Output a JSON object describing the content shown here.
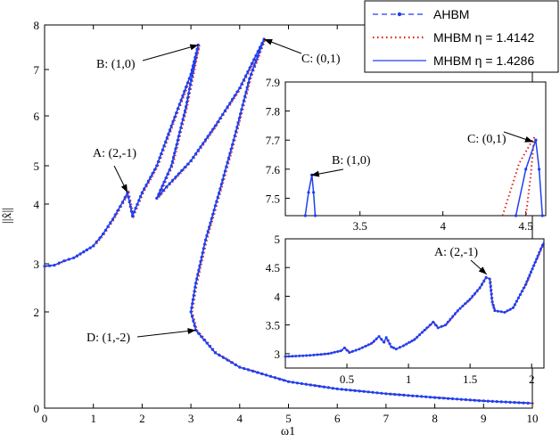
{
  "chart_data": {
    "type": "line",
    "xlabel": "ω1",
    "ylabel": "||x̂||",
    "xlim": [
      0,
      10
    ],
    "ylim": [
      0,
      8
    ],
    "xticks": [
      "0",
      "1",
      "2",
      "3",
      "4",
      "5",
      "6",
      "7",
      "8",
      "9",
      "10"
    ],
    "yticks": [
      "0",
      "2",
      "3",
      "4",
      "5",
      "6",
      "7",
      "8"
    ],
    "legend": {
      "position": "top-right",
      "entries": [
        "AHBM",
        "MHBM  η = 1.4142",
        "MHBM  η = 1.4286"
      ]
    },
    "colors": {
      "ahbm": "#1f3ff0",
      "mhbm1": "#e0201a",
      "mhbm2": "#1f3ff0"
    },
    "annotations": [
      {
        "text": "B: (1,0)",
        "x": 3.15,
        "y": 7.55
      },
      {
        "text": "C: (0,1)",
        "x": 4.5,
        "y": 7.68
      },
      {
        "text": "A: (2,-1)",
        "x": 1.7,
        "y": 4.3
      },
      {
        "text": "D: (1,-2)",
        "x": 3.1,
        "y": 1.62
      }
    ],
    "series": [
      {
        "name": "AHBM",
        "x": [
          0,
          0.2,
          0.4,
          0.6,
          0.8,
          1.0,
          1.2,
          1.4,
          1.6,
          1.7,
          1.8,
          2.0,
          2.3,
          2.6,
          3.0,
          3.15,
          2.9,
          2.6,
          2.3,
          2.5,
          3.0,
          3.5,
          4.0,
          4.5,
          4.2,
          3.9,
          3.6,
          3.3,
          3.1,
          3.0,
          3.1,
          3.5,
          4.0,
          5.0,
          6.0,
          7.0,
          8.0,
          9.0,
          10.0
        ],
        "y": [
          2.95,
          2.97,
          3.05,
          3.1,
          3.2,
          3.3,
          3.5,
          3.75,
          4.05,
          4.3,
          3.8,
          4.3,
          5.0,
          5.8,
          6.9,
          7.55,
          6.2,
          5.0,
          4.15,
          4.45,
          5.1,
          5.8,
          6.6,
          7.68,
          6.8,
          5.6,
          4.4,
          3.4,
          2.6,
          2.0,
          1.62,
          1.15,
          0.85,
          0.55,
          0.4,
          0.3,
          0.22,
          0.15,
          0.1
        ]
      },
      {
        "name": "MHBM  η = 1.4142",
        "x": [],
        "y": []
      },
      {
        "name": "MHBM  η = 1.4286",
        "x": [],
        "y": []
      }
    ],
    "insets": [
      {
        "xlim": [
          3.05,
          4.62
        ],
        "ylim": [
          7.44,
          7.9
        ],
        "xticks": [
          "3.5",
          "4",
          "4.5"
        ],
        "yticks": [
          "7.5",
          "7.6",
          "7.7",
          "7.8",
          "7.9"
        ],
        "annotations": [
          {
            "text": "B: (1,0)",
            "x": 3.2,
            "y": 7.58
          },
          {
            "text": "C: (0,1)",
            "x": 4.55,
            "y": 7.7
          }
        ]
      },
      {
        "xlim": [
          0.0,
          2.1
        ],
        "ylim": [
          2.75,
          5.0
        ],
        "xticks": [
          "0.5",
          "1",
          "1.5",
          "2"
        ],
        "yticks": [
          "3",
          "3.5",
          "4",
          "4.5",
          "5"
        ],
        "annotations": [
          {
            "text": "A: (2,-1)",
            "x": 1.63,
            "y": 4.35
          }
        ]
      }
    ]
  }
}
